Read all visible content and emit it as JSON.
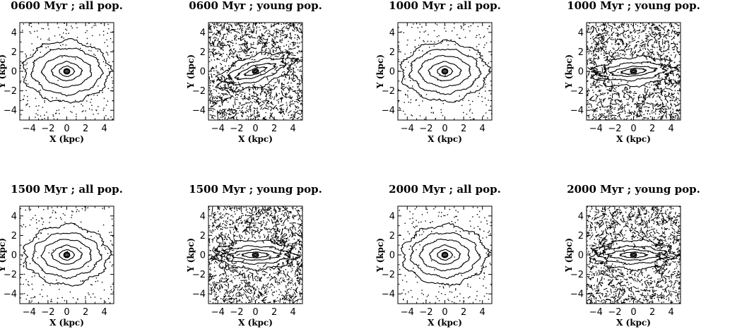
{
  "figure": {
    "panels": [
      {
        "title": "0600 Myr ; all pop.",
        "population": "all"
      },
      {
        "title": "0600 Myr ; young pop.",
        "population": "young"
      },
      {
        "title": "1000 Myr ; all pop.",
        "population": "all"
      },
      {
        "title": "1000 Myr ; young pop.",
        "population": "young"
      },
      {
        "title": "1500 Myr ; all pop.",
        "population": "all"
      },
      {
        "title": "1500 Myr ; young pop.",
        "population": "young"
      },
      {
        "title": "2000 Myr ; all pop.",
        "population": "all"
      },
      {
        "title": "2000 Myr ; young pop.",
        "population": "young"
      }
    ]
  },
  "chart_data": [
    {
      "type": "contour",
      "title": "0600 Myr ; all pop.",
      "xlabel": "X (kpc)",
      "ylabel": "Y (kpc)",
      "xlim": [
        -5,
        5
      ],
      "ylim": [
        -5,
        5
      ],
      "xticks": [
        -4,
        -2,
        0,
        2,
        4
      ],
      "yticks": [
        -4,
        -2,
        0,
        2,
        4
      ],
      "tilt_deg": 0,
      "contour_semi_axes_kpc": [
        [
          0.3,
          0.25
        ],
        [
          0.8,
          0.55
        ],
        [
          1.6,
          1.0
        ],
        [
          2.6,
          1.6
        ],
        [
          3.7,
          2.4
        ],
        [
          4.6,
          3.2
        ]
      ]
    },
    {
      "type": "contour",
      "title": "0600 Myr ; young pop.",
      "xlabel": "X (kpc)",
      "ylabel": "Y (kpc)",
      "xlim": [
        -5,
        5
      ],
      "ylim": [
        -5,
        5
      ],
      "xticks": [
        -4,
        -2,
        0,
        2,
        4
      ],
      "yticks": [
        -4,
        -2,
        0,
        2,
        4
      ],
      "tilt_deg": 18,
      "contour_semi_axes_kpc": [
        [
          0.3,
          0.15
        ],
        [
          1.2,
          0.3
        ],
        [
          2.2,
          0.6
        ],
        [
          3.2,
          1.0
        ],
        [
          4.2,
          1.6
        ]
      ]
    },
    {
      "type": "contour",
      "title": "1000 Myr ; all pop.",
      "xlabel": "X (kpc)",
      "ylabel": "Y (kpc)",
      "xlim": [
        -5,
        5
      ],
      "ylim": [
        -5,
        5
      ],
      "xticks": [
        -4,
        -2,
        0,
        2,
        4
      ],
      "yticks": [
        -4,
        -2,
        0,
        2,
        4
      ],
      "tilt_deg": 0,
      "contour_semi_axes_kpc": [
        [
          0.3,
          0.25
        ],
        [
          0.8,
          0.55
        ],
        [
          1.7,
          1.0
        ],
        [
          2.7,
          1.6
        ],
        [
          3.7,
          2.3
        ],
        [
          4.6,
          3.1
        ]
      ]
    },
    {
      "type": "contour",
      "title": "1000 Myr ; young pop.",
      "xlabel": "X (kpc)",
      "ylabel": "Y (kpc)",
      "xlim": [
        -5,
        5
      ],
      "ylim": [
        -5,
        5
      ],
      "xticks": [
        -4,
        -2,
        0,
        2,
        4
      ],
      "yticks": [
        -4,
        -2,
        0,
        2,
        4
      ],
      "tilt_deg": 5,
      "contour_semi_axes_kpc": [
        [
          0.3,
          0.15
        ],
        [
          1.3,
          0.3
        ],
        [
          2.4,
          0.5
        ],
        [
          3.4,
          0.9
        ],
        [
          4.3,
          1.5
        ]
      ]
    },
    {
      "type": "contour",
      "title": "1500 Myr ; all pop.",
      "xlabel": "X (kpc)",
      "ylabel": "Y (kpc)",
      "xlim": [
        -5,
        5
      ],
      "ylim": [
        -5,
        5
      ],
      "xticks": [
        -4,
        -2,
        0,
        2,
        4
      ],
      "yticks": [
        -4,
        -2,
        0,
        2,
        4
      ],
      "tilt_deg": 0,
      "contour_semi_axes_kpc": [
        [
          0.3,
          0.25
        ],
        [
          0.8,
          0.55
        ],
        [
          1.6,
          1.0
        ],
        [
          2.6,
          1.6
        ],
        [
          3.6,
          2.3
        ],
        [
          4.5,
          3.1
        ]
      ]
    },
    {
      "type": "contour",
      "title": "1500 Myr ; young pop.",
      "xlabel": "X (kpc)",
      "ylabel": "Y (kpc)",
      "xlim": [
        -5,
        5
      ],
      "ylim": [
        -5,
        5
      ],
      "xticks": [
        -4,
        -2,
        0,
        2,
        4
      ],
      "yticks": [
        -4,
        -2,
        0,
        2,
        4
      ],
      "tilt_deg": 0,
      "contour_semi_axes_kpc": [
        [
          0.3,
          0.15
        ],
        [
          1.4,
          0.3
        ],
        [
          2.6,
          0.55
        ],
        [
          3.5,
          0.9
        ],
        [
          4.3,
          1.5
        ]
      ]
    },
    {
      "type": "contour",
      "title": "2000 Myr ; all pop.",
      "xlabel": "X (kpc)",
      "ylabel": "Y (kpc)",
      "xlim": [
        -5,
        5
      ],
      "ylim": [
        -5,
        5
      ],
      "xticks": [
        -4,
        -2,
        0,
        2,
        4
      ],
      "yticks": [
        -4,
        -2,
        0,
        2,
        4
      ],
      "tilt_deg": 0,
      "contour_semi_axes_kpc": [
        [
          0.3,
          0.25
        ],
        [
          0.8,
          0.55
        ],
        [
          1.6,
          1.0
        ],
        [
          2.6,
          1.6
        ],
        [
          3.6,
          2.3
        ],
        [
          4.5,
          3.1
        ]
      ]
    },
    {
      "type": "contour",
      "title": "2000 Myr ; young pop.",
      "xlabel": "X (kpc)",
      "ylabel": "Y (kpc)",
      "xlim": [
        -5,
        5
      ],
      "ylim": [
        -5,
        5
      ],
      "xticks": [
        -4,
        -2,
        0,
        2,
        4
      ],
      "yticks": [
        -4,
        -2,
        0,
        2,
        4
      ],
      "tilt_deg": 0,
      "contour_semi_axes_kpc": [
        [
          0.3,
          0.15
        ],
        [
          1.4,
          0.3
        ],
        [
          2.6,
          0.55
        ],
        [
          3.5,
          0.9
        ],
        [
          4.3,
          1.5
        ]
      ]
    }
  ]
}
